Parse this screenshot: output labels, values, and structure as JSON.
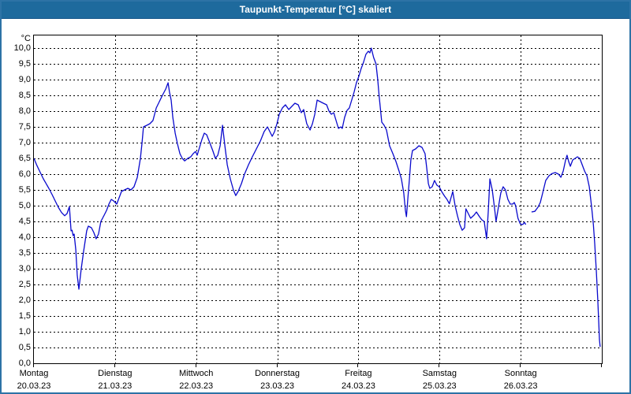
{
  "window": {
    "title": "Taupunkt-Temperatur [°C] skaliert"
  },
  "chart_data": {
    "type": "line",
    "title": "Taupunkt-Temperatur [°C] skaliert",
    "grid": "dashed",
    "legend": "none",
    "line_color": "#0a0acd",
    "y_axis": {
      "unit_label": "°C",
      "min": 0.0,
      "max": 10.0,
      "tick_step": 0.5,
      "tick_labels": [
        "10,0",
        "9,5",
        "9,0",
        "8,5",
        "8,0",
        "7,5",
        "7,0",
        "6,5",
        "6,0",
        "5,5",
        "5,0",
        "4,5",
        "4,0",
        "3,5",
        "3,0",
        "2,5",
        "2,0",
        "1,5",
        "1,0",
        "0,5",
        "0,0"
      ]
    },
    "x_axis": {
      "hours_total": 168,
      "days": [
        {
          "name": "Montag",
          "date": "20.03.23"
        },
        {
          "name": "Dienstag",
          "date": "21.03.23"
        },
        {
          "name": "Mittwoch",
          "date": "22.03.23"
        },
        {
          "name": "Donnerstag",
          "date": "23.03.23"
        },
        {
          "name": "Freitag",
          "date": "24.03.23"
        },
        {
          "name": "Samstag",
          "date": "25.03.23"
        },
        {
          "name": "Sonntag",
          "date": "26.03.23"
        }
      ]
    },
    "series": [
      {
        "name": "Taupunkt",
        "points": [
          [
            0,
            6.5
          ],
          [
            0.9,
            6.27
          ],
          [
            1.9,
            6.05
          ],
          [
            2.8,
            5.85
          ],
          [
            3.5,
            5.72
          ],
          [
            4.4,
            5.55
          ],
          [
            5.4,
            5.35
          ],
          [
            6.3,
            5.15
          ],
          [
            7.2,
            4.95
          ],
          [
            8.2,
            4.78
          ],
          [
            9.1,
            4.68
          ],
          [
            9.8,
            4.75
          ],
          [
            10.5,
            4.97
          ],
          [
            11.0,
            4.2
          ],
          [
            11.3,
            4.22
          ],
          [
            11.6,
            4.05
          ],
          [
            11.9,
            4.1
          ],
          [
            12.4,
            3.6
          ],
          [
            12.8,
            2.8
          ],
          [
            13.3,
            2.35
          ],
          [
            14.0,
            3.0
          ],
          [
            14.7,
            3.55
          ],
          [
            15.6,
            4.2
          ],
          [
            16.1,
            4.35
          ],
          [
            17.0,
            4.3
          ],
          [
            17.7,
            4.15
          ],
          [
            18.4,
            3.95
          ],
          [
            19.1,
            4.1
          ],
          [
            19.8,
            4.5
          ],
          [
            20.8,
            4.7
          ],
          [
            21.5,
            4.85
          ],
          [
            22.2,
            5.05
          ],
          [
            22.9,
            5.2
          ],
          [
            23.6,
            5.15
          ],
          [
            24.5,
            5.05
          ],
          [
            25.2,
            5.25
          ],
          [
            25.9,
            5.45
          ],
          [
            26.8,
            5.5
          ],
          [
            27.8,
            5.55
          ],
          [
            28.7,
            5.5
          ],
          [
            29.6,
            5.6
          ],
          [
            30.6,
            5.9
          ],
          [
            31.5,
            6.5
          ],
          [
            32.0,
            7.0
          ],
          [
            32.4,
            7.5
          ],
          [
            33.4,
            7.55
          ],
          [
            34.3,
            7.6
          ],
          [
            35.2,
            7.7
          ],
          [
            36.2,
            8.1
          ],
          [
            37.1,
            8.3
          ],
          [
            38.0,
            8.5
          ],
          [
            39.0,
            8.7
          ],
          [
            39.7,
            8.9
          ],
          [
            40.1,
            8.6
          ],
          [
            40.6,
            8.35
          ],
          [
            41.1,
            7.8
          ],
          [
            41.8,
            7.3
          ],
          [
            42.5,
            6.95
          ],
          [
            43.2,
            6.65
          ],
          [
            43.9,
            6.5
          ],
          [
            44.6,
            6.42
          ],
          [
            45.5,
            6.5
          ],
          [
            46.4,
            6.55
          ],
          [
            47.1,
            6.65
          ],
          [
            47.8,
            6.72
          ],
          [
            48.3,
            6.6
          ],
          [
            49.0,
            6.85
          ],
          [
            49.7,
            7.1
          ],
          [
            50.4,
            7.3
          ],
          [
            51.1,
            7.25
          ],
          [
            52.0,
            7.0
          ],
          [
            52.9,
            6.75
          ],
          [
            53.7,
            6.5
          ],
          [
            54.4,
            6.6
          ],
          [
            55.1,
            6.9
          ],
          [
            55.8,
            7.55
          ],
          [
            56.5,
            6.9
          ],
          [
            57.2,
            6.3
          ],
          [
            58.1,
            5.85
          ],
          [
            59.0,
            5.5
          ],
          [
            59.7,
            5.32
          ],
          [
            60.4,
            5.45
          ],
          [
            61.4,
            5.7
          ],
          [
            62.3,
            6.0
          ],
          [
            63.5,
            6.3
          ],
          [
            64.6,
            6.55
          ],
          [
            65.8,
            6.8
          ],
          [
            67.0,
            7.05
          ],
          [
            68.1,
            7.35
          ],
          [
            69.1,
            7.5
          ],
          [
            69.8,
            7.35
          ],
          [
            70.5,
            7.2
          ],
          [
            71.2,
            7.35
          ],
          [
            71.9,
            7.6
          ],
          [
            72.6,
            7.9
          ],
          [
            73.5,
            8.1
          ],
          [
            74.4,
            8.2
          ],
          [
            75.4,
            8.05
          ],
          [
            76.3,
            8.15
          ],
          [
            77.2,
            8.25
          ],
          [
            78.2,
            8.2
          ],
          [
            79.1,
            7.95
          ],
          [
            79.8,
            8.05
          ],
          [
            80.7,
            7.6
          ],
          [
            81.7,
            7.4
          ],
          [
            82.4,
            7.6
          ],
          [
            83.1,
            7.9
          ],
          [
            83.8,
            8.35
          ],
          [
            84.7,
            8.3
          ],
          [
            85.6,
            8.25
          ],
          [
            86.6,
            8.2
          ],
          [
            87.3,
            8.0
          ],
          [
            88.0,
            7.9
          ],
          [
            88.7,
            7.95
          ],
          [
            89.4,
            7.7
          ],
          [
            90.1,
            7.45
          ],
          [
            90.8,
            7.5
          ],
          [
            91.2,
            7.45
          ],
          [
            91.9,
            7.8
          ],
          [
            92.6,
            8.02
          ],
          [
            93.3,
            8.1
          ],
          [
            94.0,
            8.35
          ],
          [
            94.7,
            8.6
          ],
          [
            95.4,
            8.9
          ],
          [
            96.1,
            9.1
          ],
          [
            96.8,
            9.35
          ],
          [
            97.5,
            9.55
          ],
          [
            98.2,
            9.8
          ],
          [
            98.9,
            9.9
          ],
          [
            99.4,
            9.85
          ],
          [
            99.8,
            10.0
          ],
          [
            100.5,
            9.7
          ],
          [
            101.2,
            9.5
          ],
          [
            101.7,
            9.0
          ],
          [
            102.1,
            8.5
          ],
          [
            102.9,
            7.65
          ],
          [
            103.6,
            7.55
          ],
          [
            104.3,
            7.4
          ],
          [
            105.2,
            6.9
          ],
          [
            106.2,
            6.65
          ],
          [
            107.1,
            6.4
          ],
          [
            108.0,
            6.1
          ],
          [
            108.7,
            5.85
          ],
          [
            109.4,
            5.4
          ],
          [
            109.9,
            4.85
          ],
          [
            110.2,
            4.65
          ],
          [
            110.6,
            5.2
          ],
          [
            111.1,
            5.85
          ],
          [
            111.5,
            6.45
          ],
          [
            112.0,
            6.75
          ],
          [
            112.9,
            6.8
          ],
          [
            113.9,
            6.9
          ],
          [
            114.8,
            6.85
          ],
          [
            115.7,
            6.65
          ],
          [
            116.2,
            6.2
          ],
          [
            116.7,
            5.7
          ],
          [
            117.1,
            5.55
          ],
          [
            117.8,
            5.6
          ],
          [
            118.5,
            5.8
          ],
          [
            119.2,
            5.65
          ],
          [
            119.9,
            5.6
          ],
          [
            120.6,
            5.45
          ],
          [
            121.5,
            5.3
          ],
          [
            122.2,
            5.2
          ],
          [
            122.9,
            5.06
          ],
          [
            123.9,
            5.45
          ],
          [
            124.6,
            5.0
          ],
          [
            125.3,
            4.68
          ],
          [
            126.0,
            4.4
          ],
          [
            126.7,
            4.22
          ],
          [
            127.4,
            4.3
          ],
          [
            127.8,
            4.9
          ],
          [
            128.5,
            4.75
          ],
          [
            129.2,
            4.6
          ],
          [
            130.2,
            4.7
          ],
          [
            130.9,
            4.8
          ],
          [
            131.8,
            4.65
          ],
          [
            132.5,
            4.55
          ],
          [
            133.2,
            4.5
          ],
          [
            133.9,
            3.95
          ],
          [
            134.4,
            4.8
          ],
          [
            134.9,
            5.85
          ],
          [
            135.6,
            5.5
          ],
          [
            136.3,
            4.9
          ],
          [
            136.7,
            4.5
          ],
          [
            137.4,
            4.95
          ],
          [
            138.1,
            5.4
          ],
          [
            138.8,
            5.6
          ],
          [
            139.5,
            5.5
          ],
          [
            140.2,
            5.2
          ],
          [
            140.9,
            5.05
          ],
          [
            141.6,
            5.05
          ],
          [
            142.1,
            5.1
          ],
          [
            142.5,
            5.0
          ],
          [
            143.2,
            4.6
          ],
          [
            143.9,
            4.42
          ],
          [
            144.6,
            4.4
          ],
          [
            145.1,
            4.47
          ],
          [
            145.5,
            4.4
          ],
          null,
          [
            147.2,
            4.8
          ],
          [
            148.2,
            4.82
          ],
          [
            149.1,
            4.95
          ],
          [
            149.8,
            5.1
          ],
          [
            150.5,
            5.4
          ],
          [
            151.4,
            5.8
          ],
          [
            152.4,
            5.95
          ],
          [
            153.3,
            6.02
          ],
          [
            154.2,
            6.05
          ],
          [
            155.2,
            6.0
          ],
          [
            155.9,
            5.9
          ],
          [
            156.6,
            6.1
          ],
          [
            157.3,
            6.45
          ],
          [
            157.7,
            6.6
          ],
          [
            158.2,
            6.4
          ],
          [
            158.7,
            6.25
          ],
          [
            159.4,
            6.45
          ],
          [
            160.1,
            6.5
          ],
          [
            160.8,
            6.55
          ],
          [
            161.5,
            6.5
          ],
          [
            162.2,
            6.3
          ],
          [
            162.9,
            6.1
          ],
          [
            163.6,
            5.95
          ],
          [
            164.3,
            5.6
          ],
          [
            165.0,
            4.95
          ],
          [
            165.5,
            4.4
          ],
          [
            165.9,
            3.8
          ],
          [
            166.4,
            2.9
          ],
          [
            166.8,
            2.0
          ],
          [
            167.1,
            1.3
          ],
          [
            167.3,
            0.75
          ],
          [
            167.5,
            0.52
          ]
        ]
      }
    ]
  }
}
